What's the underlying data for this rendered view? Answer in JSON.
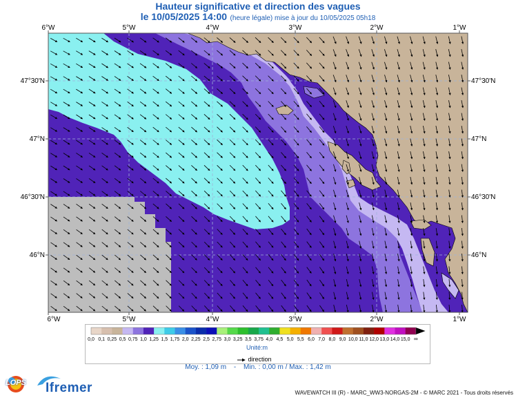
{
  "title": {
    "line1": "Hauteur significative et direction des vagues",
    "line2_main": "le 10/05/2025 14:00",
    "line2_note": "(heure légale) mise à jour du 10/05/2025 05h18"
  },
  "map": {
    "lon_labels": [
      "6°W",
      "5°W",
      "4°W",
      "3°W",
      "2°W",
      "1°W"
    ],
    "lat_labels": [
      "47°30'N",
      "47°N",
      "46°30'N",
      "46°N"
    ],
    "lon_range": [
      -6.0,
      -1.0
    ],
    "lat_range": [
      45.5,
      47.9
    ],
    "grid": true,
    "land_color": "#c8b49a",
    "nodata_color": "#bdbdbd",
    "colors": {
      "h_0_5_0_75": "#c5b8f2",
      "h_0_75_1_0": "#8d74df",
      "h_1_0_1_25": "#5023b8",
      "h_1_25_1_5": "#8af0f0"
    }
  },
  "legend": {
    "labels": [
      "0,0",
      "0,1",
      "0,25",
      "0,5",
      "0,75",
      "1,0",
      "1,25",
      "1,5",
      "1,75",
      "2,0",
      "2,25",
      "2,5",
      "2,75",
      "3,0",
      "3,25",
      "3,5",
      "3,75",
      "4,0",
      "4,5",
      "5,0",
      "5,5",
      "6,0",
      "7,0",
      "8,0",
      "9,0",
      "10,0",
      "11,0",
      "12,0",
      "13,0",
      "14,0",
      "15,0",
      "∞"
    ],
    "colors": [
      "#e8d6c8",
      "#d7bfae",
      "#c8b49a",
      "#c5b8f2",
      "#8d74df",
      "#5023b8",
      "#8af0f0",
      "#3ecbe8",
      "#3a8fe6",
      "#1b53c9",
      "#0a2dab",
      "#0b0fb7",
      "#a8f07a",
      "#55d94a",
      "#2dbf2d",
      "#18a84a",
      "#20c090",
      "#2fae2f",
      "#f0e020",
      "#f5b000",
      "#f07800",
      "#f0b0b0",
      "#f05050",
      "#d01818",
      "#c07030",
      "#a05020",
      "#802010",
      "#b00000",
      "#e030e0",
      "#c010c0",
      "#900050"
    ],
    "unit": "Unité:m",
    "direction_label": "direction"
  },
  "stats": {
    "moy": "Moy. : 1,09 m",
    "sep": "-",
    "min": "Min. : 0,00 m / Max. : 1,42 m"
  },
  "footer": {
    "credit": "WAVEWATCH III (R) - MARC_WW3-NORGAS-2M - © MARC 2021 - Tous droits réservés",
    "lops": "LOPS",
    "ifremer": "Ifremer"
  }
}
